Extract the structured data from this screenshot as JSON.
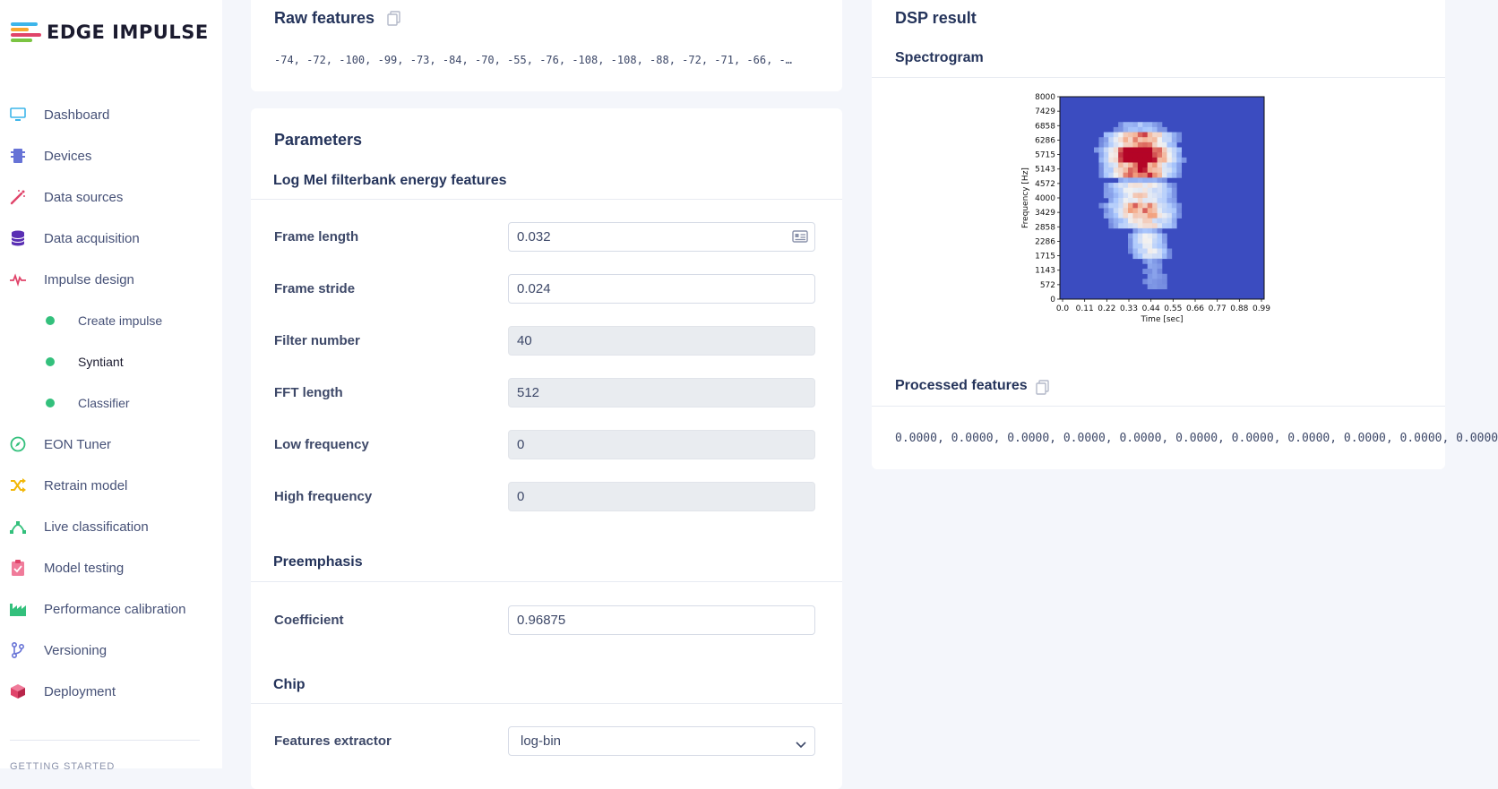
{
  "app": {
    "logo_text": "EDGE IMPULSE"
  },
  "sidebar": {
    "items": [
      {
        "label": "Dashboard"
      },
      {
        "label": "Devices"
      },
      {
        "label": "Data sources"
      },
      {
        "label": "Data acquisition"
      },
      {
        "label": "Impulse design"
      },
      {
        "label": "EON Tuner"
      },
      {
        "label": "Retrain model"
      },
      {
        "label": "Live classification"
      },
      {
        "label": "Model testing"
      },
      {
        "label": "Performance calibration"
      },
      {
        "label": "Versioning"
      },
      {
        "label": "Deployment"
      }
    ],
    "sub_items": [
      {
        "label": "Create impulse"
      },
      {
        "label": "Syntiant"
      },
      {
        "label": "Classifier"
      }
    ],
    "section_getting_started": "GETTING STARTED"
  },
  "raw_features": {
    "title": "Raw features",
    "values": "-74, -72, -100, -99, -73, -84, -70, -55, -76, -108, -108, -88, -72, -71, -66, -…"
  },
  "parameters": {
    "title": "Parameters",
    "section_mel": "Log Mel filterbank energy features",
    "frame_length_label": "Frame length",
    "frame_length_value": "0.032",
    "frame_stride_label": "Frame stride",
    "frame_stride_value": "0.024",
    "filter_number_label": "Filter number",
    "filter_number_value": "40",
    "fft_length_label": "FFT length",
    "fft_length_value": "512",
    "low_freq_label": "Low frequency",
    "low_freq_value": "0",
    "high_freq_label": "High frequency",
    "high_freq_value": "0",
    "section_preemphasis": "Preemphasis",
    "coefficient_label": "Coefficient",
    "coefficient_value": "0.96875",
    "section_chip": "Chip",
    "features_extractor_label": "Features extractor",
    "features_extractor_value": "log-bin"
  },
  "dsp": {
    "title": "DSP result",
    "spectrogram_title": "Spectrogram",
    "processed_title": "Processed features",
    "processed_values": "0.0000, 0.0000, 0.0000, 0.0000, 0.0000, 0.0000, 0.0000, 0.0000, 0.0000, 0.0000, 0.0000"
  },
  "chart_data": {
    "type": "heatmap",
    "xlabel": "Time [sec]",
    "ylabel": "Frequency [Hz]",
    "x_ticks": [
      "0.0",
      "0.11",
      "0.22",
      "0.33",
      "0.44",
      "0.55",
      "0.66",
      "0.77",
      "0.88",
      "0.99"
    ],
    "y_ticks": [
      "8000",
      "7429",
      "6858",
      "6286",
      "5715",
      "5143",
      "4572",
      "4000",
      "3429",
      "2858",
      "2286",
      "1715",
      "1143",
      "572",
      "0"
    ],
    "xlim": [
      0,
      0.99
    ],
    "ylim": [
      0,
      8000
    ],
    "colormap": "coolwarm",
    "base_color": "#3b4cc0",
    "hot_color": "#b40426"
  },
  "colors": {
    "accent_green": "#33c07c",
    "text_primary": "#25345b",
    "text_secondary": "#465177"
  }
}
